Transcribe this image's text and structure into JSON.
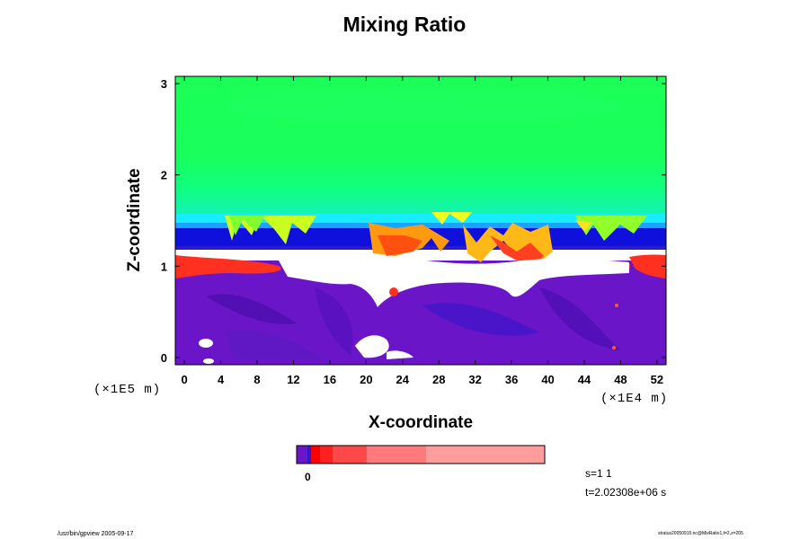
{
  "title": "Mixing Ratio",
  "chart_data": {
    "type": "heatmap",
    "title": "Mixing Ratio",
    "xlabel": "X-coordinate",
    "ylabel": "Z-coordinate",
    "x_unit": "(×1E4 m)",
    "y_unit": "(×1E5 m)",
    "xlim": [
      -1,
      53
    ],
    "ylim": [
      -0.08,
      3.08
    ],
    "x_ticks": [
      0,
      4,
      8,
      12,
      16,
      20,
      24,
      28,
      32,
      36,
      40,
      44,
      48,
      52
    ],
    "x_tick_labels": [
      "0",
      "4",
      "8",
      "12",
      "16",
      "20",
      "24",
      "28",
      "32",
      "36",
      "40",
      "44",
      "48",
      "52"
    ],
    "y_ticks": [
      0,
      1,
      2,
      3
    ],
    "y_tick_labels": [
      "0",
      "1",
      "2",
      "3"
    ],
    "colorbar": {
      "label": "0",
      "colors": [
        "#6a16c8",
        "#2a1ad2",
        "#ff0000",
        "#ff2020",
        "#ff4848",
        "#ff7a7a",
        "#ff9c9c"
      ]
    },
    "layers": {
      "upper_green": {
        "z_min": 1.5,
        "z_max": 3.08,
        "color": "#19ff5a"
      },
      "cyan_band": {
        "z_min": 1.4,
        "z_max": 1.5,
        "color": "#18ecff"
      },
      "blue_band": {
        "z_min": 1.2,
        "z_max": 1.4,
        "color": "#1010dc"
      },
      "white_gap": {
        "z_min": 0.9,
        "z_max": 1.1,
        "color": "#ffffff"
      },
      "lower_purple": {
        "z_min": -0.08,
        "z_max": 0.95,
        "color": "#6a16c8"
      }
    }
  },
  "annotations": {
    "step": "s=1 1",
    "time": "t=2.02308e+06 s"
  },
  "footer": {
    "left": "/usr/bin/gpview 2005-09-17",
    "right": "stratus20050915.nc@MixRatio1,t=2,z=205"
  }
}
